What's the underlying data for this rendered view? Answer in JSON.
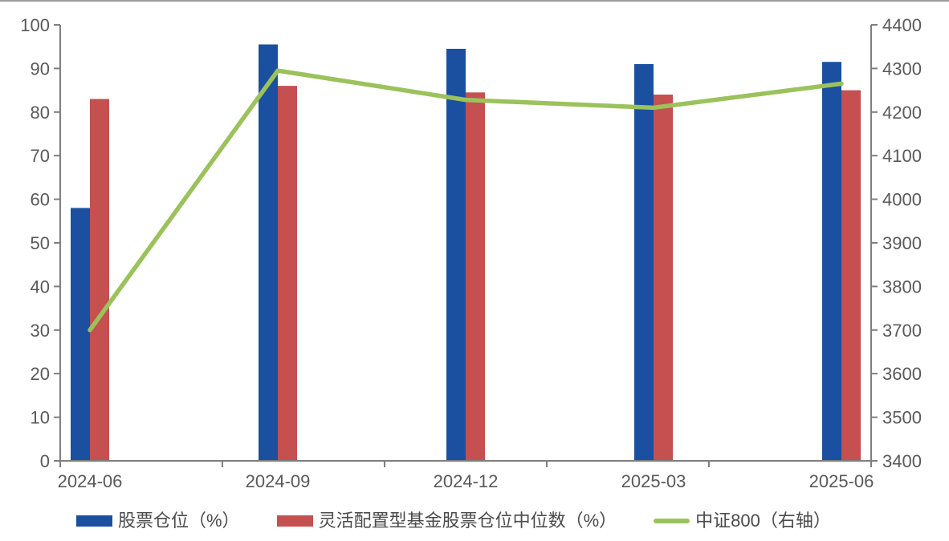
{
  "chart_data": {
    "type": "bar",
    "subtype": "grouped-bar-with-line-combo",
    "title": "",
    "categories": [
      "2024-06",
      "2024-09",
      "2024-12",
      "2025-03",
      "2025-06"
    ],
    "series": [
      {
        "name": "股票仓位（%）",
        "type": "bar",
        "axis": "left",
        "color": "#1A509F",
        "values": [
          58,
          95.5,
          94.5,
          91,
          91.5
        ]
      },
      {
        "name": "灵活配置型基金股票仓位中位数（%）",
        "type": "bar",
        "axis": "left",
        "color": "#C4504F",
        "values": [
          83,
          86,
          84.5,
          84,
          85
        ]
      },
      {
        "name": "中证800（右轴）",
        "type": "line",
        "axis": "right",
        "color": "#9BC25B",
        "values": [
          3700,
          4295,
          4228,
          4210,
          4265
        ]
      }
    ],
    "left_axis": {
      "min": 0,
      "max": 100,
      "step": 10
    },
    "right_axis": {
      "min": 3400,
      "max": 4400,
      "step": 100
    },
    "grid": false,
    "legend_position": "bottom"
  },
  "style": {
    "axis_line_color": "#7f7f7f",
    "tick_text_color": "#595959",
    "x_label_color": "#595959",
    "top_border_color": "#9b9b9b",
    "background": "#ffffff"
  }
}
